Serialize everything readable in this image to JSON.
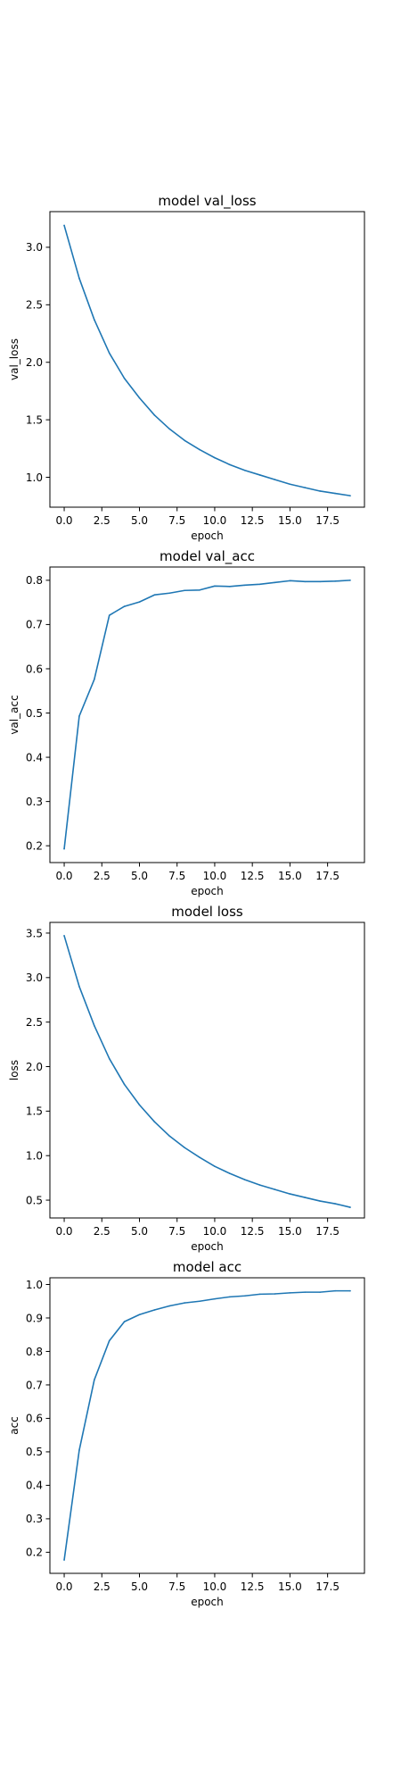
{
  "chart_data": [
    {
      "type": "line",
      "title": "model val_loss",
      "xlabel": "epoch",
      "ylabel": "val_loss",
      "xlim": [
        -0.95,
        19.95
      ],
      "ylim": [
        0.74,
        3.31
      ],
      "xticks": [
        0.0,
        2.5,
        5.0,
        7.5,
        10.0,
        12.5,
        15.0,
        17.5
      ],
      "xtick_labels": [
        "0.0",
        "2.5",
        "5.0",
        "7.5",
        "10.0",
        "12.5",
        "15.0",
        "17.5"
      ],
      "yticks": [
        1.0,
        1.5,
        2.0,
        2.5,
        3.0
      ],
      "ytick_labels": [
        "1.0",
        "1.5",
        "2.0",
        "2.5",
        "3.0"
      ],
      "grid": false,
      "color": "#1f77b4",
      "x": [
        0,
        1,
        2,
        3,
        4,
        5,
        6,
        7,
        8,
        9,
        10,
        11,
        12,
        13,
        14,
        15,
        16,
        17,
        18,
        19
      ],
      "y": [
        3.19,
        2.73,
        2.37,
        2.08,
        1.86,
        1.69,
        1.54,
        1.42,
        1.32,
        1.24,
        1.17,
        1.11,
        1.06,
        1.02,
        0.98,
        0.94,
        0.91,
        0.88,
        0.86,
        0.84
      ]
    },
    {
      "type": "line",
      "title": "model val_acc",
      "xlabel": "epoch",
      "ylabel": "val_acc",
      "xlim": [
        -0.95,
        19.95
      ],
      "ylim": [
        0.162,
        0.83
      ],
      "xticks": [
        0.0,
        2.5,
        5.0,
        7.5,
        10.0,
        12.5,
        15.0,
        17.5
      ],
      "xtick_labels": [
        "0.0",
        "2.5",
        "5.0",
        "7.5",
        "10.0",
        "12.5",
        "15.0",
        "17.5"
      ],
      "yticks": [
        0.2,
        0.3,
        0.4,
        0.5,
        0.6,
        0.7,
        0.8
      ],
      "ytick_labels": [
        "0.2",
        "0.3",
        "0.4",
        "0.5",
        "0.6",
        "0.7",
        "0.8"
      ],
      "grid": false,
      "color": "#1f77b4",
      "x": [
        0,
        1,
        2,
        3,
        4,
        5,
        6,
        7,
        8,
        9,
        10,
        11,
        12,
        13,
        14,
        15,
        16,
        17,
        18,
        19
      ],
      "y": [
        0.193,
        0.493,
        0.576,
        0.721,
        0.741,
        0.751,
        0.767,
        0.771,
        0.777,
        0.778,
        0.787,
        0.786,
        0.789,
        0.791,
        0.795,
        0.799,
        0.797,
        0.797,
        0.798,
        0.8
      ]
    },
    {
      "type": "line",
      "title": "model loss",
      "xlabel": "epoch",
      "ylabel": "loss",
      "xlim": [
        -0.95,
        19.95
      ],
      "ylim": [
        0.3,
        3.62
      ],
      "xticks": [
        0.0,
        2.5,
        5.0,
        7.5,
        10.0,
        12.5,
        15.0,
        17.5
      ],
      "xtick_labels": [
        "0.0",
        "2.5",
        "5.0",
        "7.5",
        "10.0",
        "12.5",
        "15.0",
        "17.5"
      ],
      "yticks": [
        0.5,
        1.0,
        1.5,
        2.0,
        2.5,
        3.0,
        3.5
      ],
      "ytick_labels": [
        "0.5",
        "1.0",
        "1.5",
        "2.0",
        "2.5",
        "3.0",
        "3.5"
      ],
      "grid": false,
      "color": "#1f77b4",
      "x": [
        0,
        1,
        2,
        3,
        4,
        5,
        6,
        7,
        8,
        9,
        10,
        11,
        12,
        13,
        14,
        15,
        16,
        17,
        18,
        19
      ],
      "y": [
        3.47,
        2.9,
        2.46,
        2.09,
        1.8,
        1.57,
        1.38,
        1.22,
        1.09,
        0.98,
        0.88,
        0.8,
        0.73,
        0.67,
        0.62,
        0.57,
        0.53,
        0.49,
        0.46,
        0.42
      ]
    },
    {
      "type": "line",
      "title": "model acc",
      "xlabel": "epoch",
      "ylabel": "acc",
      "xlim": [
        -0.95,
        19.95
      ],
      "ylim": [
        0.137,
        1.02
      ],
      "xticks": [
        0.0,
        2.5,
        5.0,
        7.5,
        10.0,
        12.5,
        15.0,
        17.5
      ],
      "xtick_labels": [
        "0.0",
        "2.5",
        "5.0",
        "7.5",
        "10.0",
        "12.5",
        "15.0",
        "17.5"
      ],
      "yticks": [
        0.2,
        0.3,
        0.4,
        0.5,
        0.6,
        0.7,
        0.8,
        0.9,
        1.0
      ],
      "ytick_labels": [
        "0.2",
        "0.3",
        "0.4",
        "0.5",
        "0.6",
        "0.7",
        "0.8",
        "0.9",
        "1.0"
      ],
      "grid": false,
      "color": "#1f77b4",
      "x": [
        0,
        1,
        2,
        3,
        4,
        5,
        6,
        7,
        8,
        9,
        10,
        11,
        12,
        13,
        14,
        15,
        16,
        17,
        18,
        19
      ],
      "y": [
        0.177,
        0.505,
        0.715,
        0.832,
        0.889,
        0.91,
        0.924,
        0.936,
        0.945,
        0.95,
        0.957,
        0.963,
        0.966,
        0.971,
        0.972,
        0.975,
        0.977,
        0.977,
        0.981,
        0.981
      ]
    }
  ]
}
